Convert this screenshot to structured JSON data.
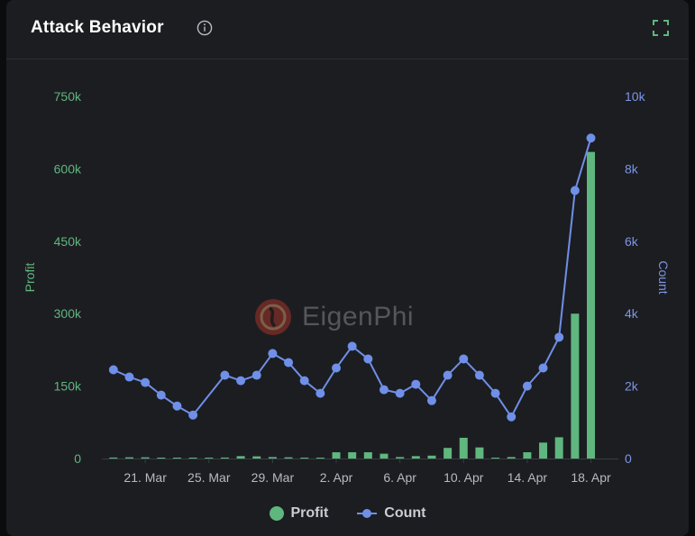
{
  "header": {
    "title": "Attack Behavior",
    "info_icon": "info-circle-icon",
    "expand_icon": "expand-icon"
  },
  "watermark": {
    "text": "EigenPhi",
    "icon": "eigenphi-logo-icon"
  },
  "colors": {
    "profit": "#5fb67f",
    "count": "#6f8fe8",
    "axis_left": "#5fb67f",
    "axis_right": "#7b96e6",
    "xtick": "#b7bac2"
  },
  "legend": [
    {
      "label": "Profit",
      "series": "profit"
    },
    {
      "label": "Count",
      "series": "count"
    }
  ],
  "chart_data": {
    "type": "bar+line",
    "title": "Attack Behavior",
    "x_tick_labels": [
      "21. Mar",
      "25. Mar",
      "29. Mar",
      "2. Apr",
      "6. Apr",
      "10. Apr",
      "14. Apr",
      "18. Apr"
    ],
    "x": [
      "19. Mar",
      "20. Mar",
      "21. Mar",
      "22. Mar",
      "23. Mar",
      "24. Mar",
      "25. Mar",
      "26. Mar",
      "27. Mar",
      "28. Mar",
      "29. Mar",
      "30. Mar",
      "31. Mar",
      "1. Apr",
      "2. Apr",
      "3. Apr",
      "4. Apr",
      "5. Apr",
      "6. Apr",
      "7. Apr",
      "8. Apr",
      "9. Apr",
      "10. Apr",
      "11. Apr",
      "12. Apr",
      "13. Apr",
      "14. Apr",
      "15. Apr",
      "16. Apr",
      "17. Apr",
      "18. Apr",
      "19. Apr"
    ],
    "series": [
      {
        "name": "Profit",
        "type": "bar",
        "axis": "left",
        "values": [
          2000,
          2500,
          2500,
          500,
          500,
          500,
          500,
          2000,
          5000,
          4500,
          3000,
          2500,
          500,
          500,
          13000,
          13000,
          13000,
          10000,
          3000,
          5000,
          6000,
          22000,
          43000,
          23000,
          1000,
          3000,
          13000,
          33000,
          44000,
          300000,
          635000,
          0
        ]
      },
      {
        "name": "Count",
        "type": "line",
        "axis": "right",
        "values": [
          2450,
          2250,
          2100,
          1750,
          1450,
          1200,
          null,
          2300,
          2150,
          2300,
          2900,
          2650,
          2150,
          1800,
          2500,
          3100,
          2750,
          1900,
          1800,
          2050,
          1600,
          2300,
          2750,
          2300,
          1800,
          1150,
          2000,
          2500,
          3350,
          7400,
          8850,
          null
        ]
      }
    ],
    "y_left": {
      "label": "Profit",
      "min": 0,
      "max": 750000,
      "ticks": [
        "0",
        "150k",
        "300k",
        "450k",
        "600k",
        "750k"
      ]
    },
    "y_right": {
      "label": "Count",
      "min": 0,
      "max": 10000,
      "ticks": [
        "0",
        "2k",
        "4k",
        "6k",
        "8k",
        "10k"
      ]
    },
    "grid": false,
    "legend_position": "bottom-center"
  }
}
